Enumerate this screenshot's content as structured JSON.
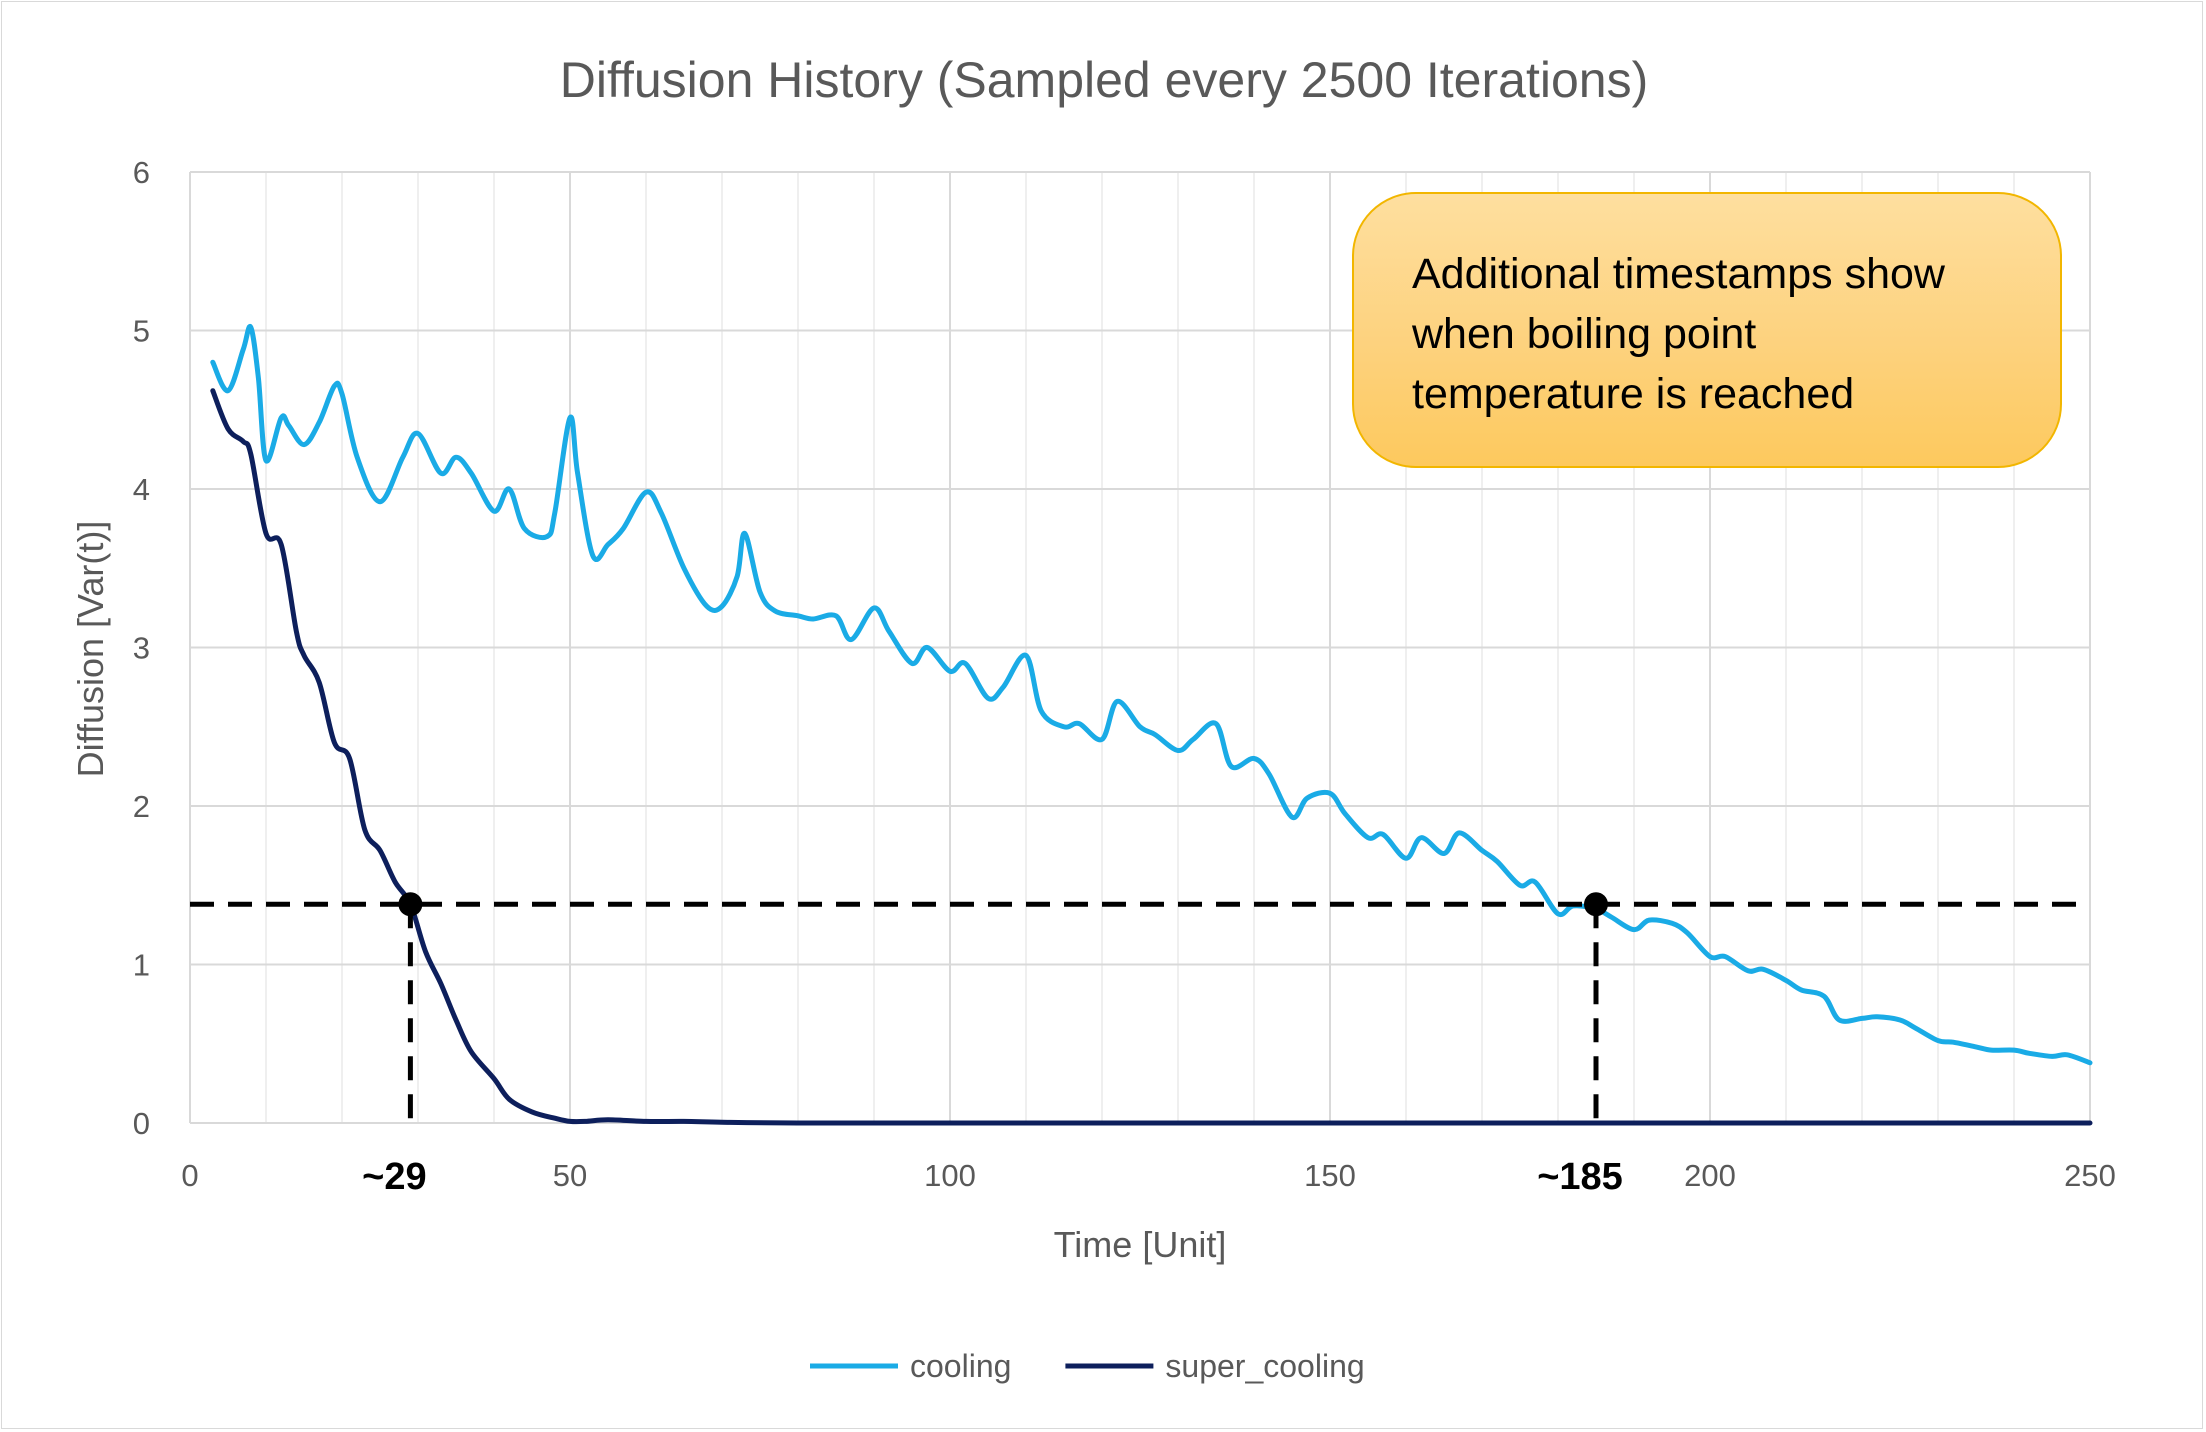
{
  "chart_data": {
    "type": "line",
    "title": "Diffusion History (Sampled every 2500 Iterations)",
    "xlabel": "Time [Unit]",
    "ylabel": "Diffusion [Var(t)]",
    "xlim": [
      0,
      250
    ],
    "ylim": [
      0,
      6
    ],
    "x_ticks": [
      0,
      50,
      100,
      150,
      200,
      250
    ],
    "y_ticks": [
      0,
      1,
      2,
      3,
      4,
      5,
      6
    ],
    "x_minor_grid_step": 10,
    "grid": true,
    "legend_position": "bottom",
    "series": [
      {
        "name": "cooling",
        "color": "#1aabe6",
        "x": [
          3,
          5,
          7,
          8,
          9,
          10,
          12,
          13,
          15,
          17,
          19,
          20,
          22,
          25,
          28,
          30,
          33,
          35,
          37,
          40,
          42,
          44,
          47,
          48,
          50,
          51,
          53,
          55,
          57,
          60,
          62,
          65,
          68,
          70,
          72,
          73,
          75,
          77,
          80,
          82,
          85,
          87,
          90,
          92,
          95,
          97,
          100,
          102,
          105,
          107,
          110,
          112,
          115,
          117,
          120,
          122,
          125,
          127,
          130,
          132,
          135,
          137,
          140,
          142,
          145,
          147,
          150,
          152,
          155,
          157,
          160,
          162,
          165,
          167,
          170,
          172,
          175,
          177,
          180,
          182,
          185,
          187,
          190,
          192,
          195,
          197,
          200,
          202,
          205,
          207,
          210,
          212,
          215,
          217,
          220,
          222,
          225,
          227,
          230,
          232,
          235,
          237,
          240,
          242,
          245,
          247,
          250
        ],
        "y": [
          4.8,
          4.62,
          4.88,
          5.02,
          4.7,
          4.18,
          4.45,
          4.4,
          4.28,
          4.42,
          4.65,
          4.6,
          4.2,
          3.92,
          4.2,
          4.35,
          4.1,
          4.2,
          4.1,
          3.86,
          4.0,
          3.75,
          3.7,
          3.85,
          4.45,
          4.1,
          3.58,
          3.65,
          3.75,
          3.98,
          3.85,
          3.5,
          3.26,
          3.26,
          3.45,
          3.72,
          3.35,
          3.23,
          3.2,
          3.18,
          3.2,
          3.05,
          3.25,
          3.1,
          2.9,
          3.0,
          2.85,
          2.9,
          2.68,
          2.75,
          2.95,
          2.6,
          2.5,
          2.52,
          2.42,
          2.66,
          2.5,
          2.45,
          2.35,
          2.42,
          2.52,
          2.25,
          2.3,
          2.2,
          1.93,
          2.05,
          2.08,
          1.95,
          1.8,
          1.82,
          1.67,
          1.8,
          1.7,
          1.83,
          1.72,
          1.65,
          1.5,
          1.52,
          1.32,
          1.37,
          1.35,
          1.3,
          1.22,
          1.28,
          1.26,
          1.2,
          1.05,
          1.05,
          0.96,
          0.97,
          0.9,
          0.84,
          0.8,
          0.65,
          0.66,
          0.67,
          0.65,
          0.6,
          0.52,
          0.51,
          0.48,
          0.46,
          0.46,
          0.44,
          0.42,
          0.43,
          0.38
        ]
      },
      {
        "name": "super_cooling",
        "color": "#0d1f5c",
        "x": [
          3,
          5,
          7,
          8,
          10,
          12,
          14,
          15,
          17,
          19,
          21,
          23,
          25,
          27,
          29,
          31,
          33,
          35,
          37,
          40,
          42,
          45,
          48,
          50,
          52,
          55,
          60,
          65,
          70,
          80,
          100,
          150,
          200,
          250
        ],
        "y": [
          4.62,
          4.38,
          4.3,
          4.22,
          3.72,
          3.65,
          3.1,
          2.95,
          2.78,
          2.4,
          2.3,
          1.85,
          1.72,
          1.52,
          1.38,
          1.08,
          0.88,
          0.65,
          0.45,
          0.28,
          0.15,
          0.07,
          0.03,
          0.01,
          0.01,
          0.02,
          0.01,
          0.01,
          0.005,
          0.0,
          0.0,
          0.0,
          0.0,
          0.0
        ]
      }
    ],
    "threshold": {
      "y": 1.38
    },
    "markers": [
      {
        "label": "~29",
        "x": 29,
        "y": 1.38
      },
      {
        "label": "~185",
        "x": 185,
        "y": 1.38
      }
    ],
    "annotation": {
      "lines": [
        "Additional timestamps show",
        "when boiling point",
        "temperature is reached"
      ]
    }
  }
}
